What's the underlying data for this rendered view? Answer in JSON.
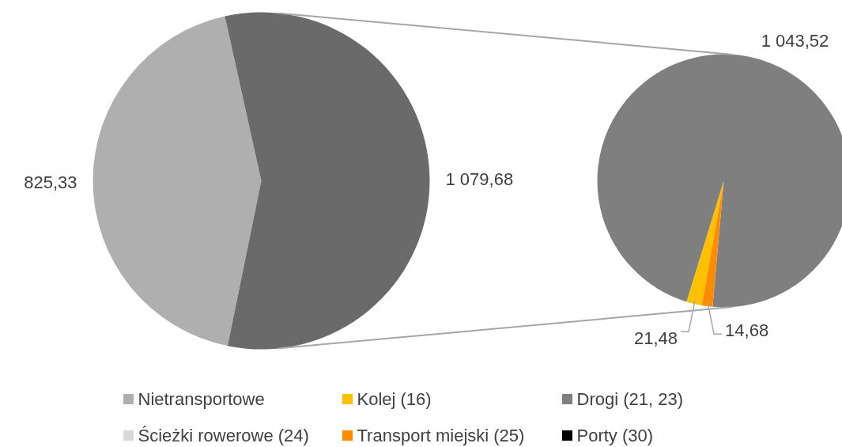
{
  "chart_data": [
    {
      "type": "pie",
      "categories": [
        "Nietransportowe",
        null
      ],
      "values": [
        825.33,
        1079.68
      ],
      "colors": [
        "#afafaf",
        "#6a6a6a"
      ],
      "value_labels": [
        "825,33",
        "1 079,68"
      ],
      "legend": "bottom"
    },
    {
      "type": "pie",
      "categories": [
        "Kolej (16)",
        "Drogi (21, 23)",
        "Ścieżki rowerowe (24)",
        "Transport miejski (25)",
        "Porty (30)"
      ],
      "values": [
        21.48,
        1043.52,
        0,
        14.68,
        0
      ],
      "colors": [
        "#ffc000",
        "#7f7f7f",
        "#d9d9d9",
        "#ff8c00",
        "#000000"
      ],
      "value_labels": [
        "21,48",
        "1 043,52",
        null,
        "14,68",
        null
      ],
      "legend": "bottom"
    }
  ]
}
